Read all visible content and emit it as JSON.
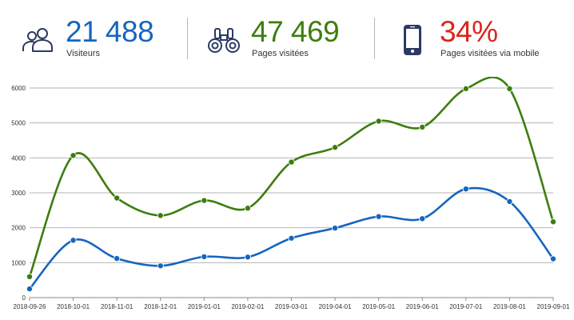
{
  "kpis": {
    "visitors": {
      "value": "21 488",
      "label": "Visiteurs",
      "color": "#1565c0",
      "icon": "users-icon"
    },
    "pages": {
      "value": "47 469",
      "label": "Pages visitées",
      "color": "#3d7d0e",
      "icon": "binoculars-icon"
    },
    "mobile": {
      "value": "34%",
      "label": "Pages visitées via mobile",
      "color": "#d9261c",
      "icon": "smartphone-icon"
    }
  },
  "chart_data": {
    "type": "line",
    "categories": [
      "2018-09-26",
      "2018-10-01",
      "2018-11-01",
      "2018-12-01",
      "2019-01-01",
      "2019-02-01",
      "2019-03-01",
      "2019-04-01",
      "2019-05-01",
      "2019-06-01",
      "2019-07-01",
      "2019-08-01",
      "2019-09-01"
    ],
    "series": [
      {
        "color": "#3d7d0e",
        "values": [
          600,
          4070,
          2850,
          2350,
          2780,
          2560,
          3880,
          4300,
          5050,
          4880,
          5980,
          5980,
          2170
        ]
      },
      {
        "color": "#1565c0",
        "values": [
          250,
          1640,
          1120,
          910,
          1170,
          1160,
          1700,
          1990,
          2320,
          2260,
          3110,
          2750,
          1110
        ]
      }
    ],
    "title": "",
    "xlabel": "",
    "ylabel": "",
    "ylim": [
      0,
      6000
    ],
    "yticks": [
      0,
      1000,
      2000,
      3000,
      4000,
      5000,
      6000
    ],
    "grid": true,
    "legend": "none",
    "line_style": "smooth"
  }
}
